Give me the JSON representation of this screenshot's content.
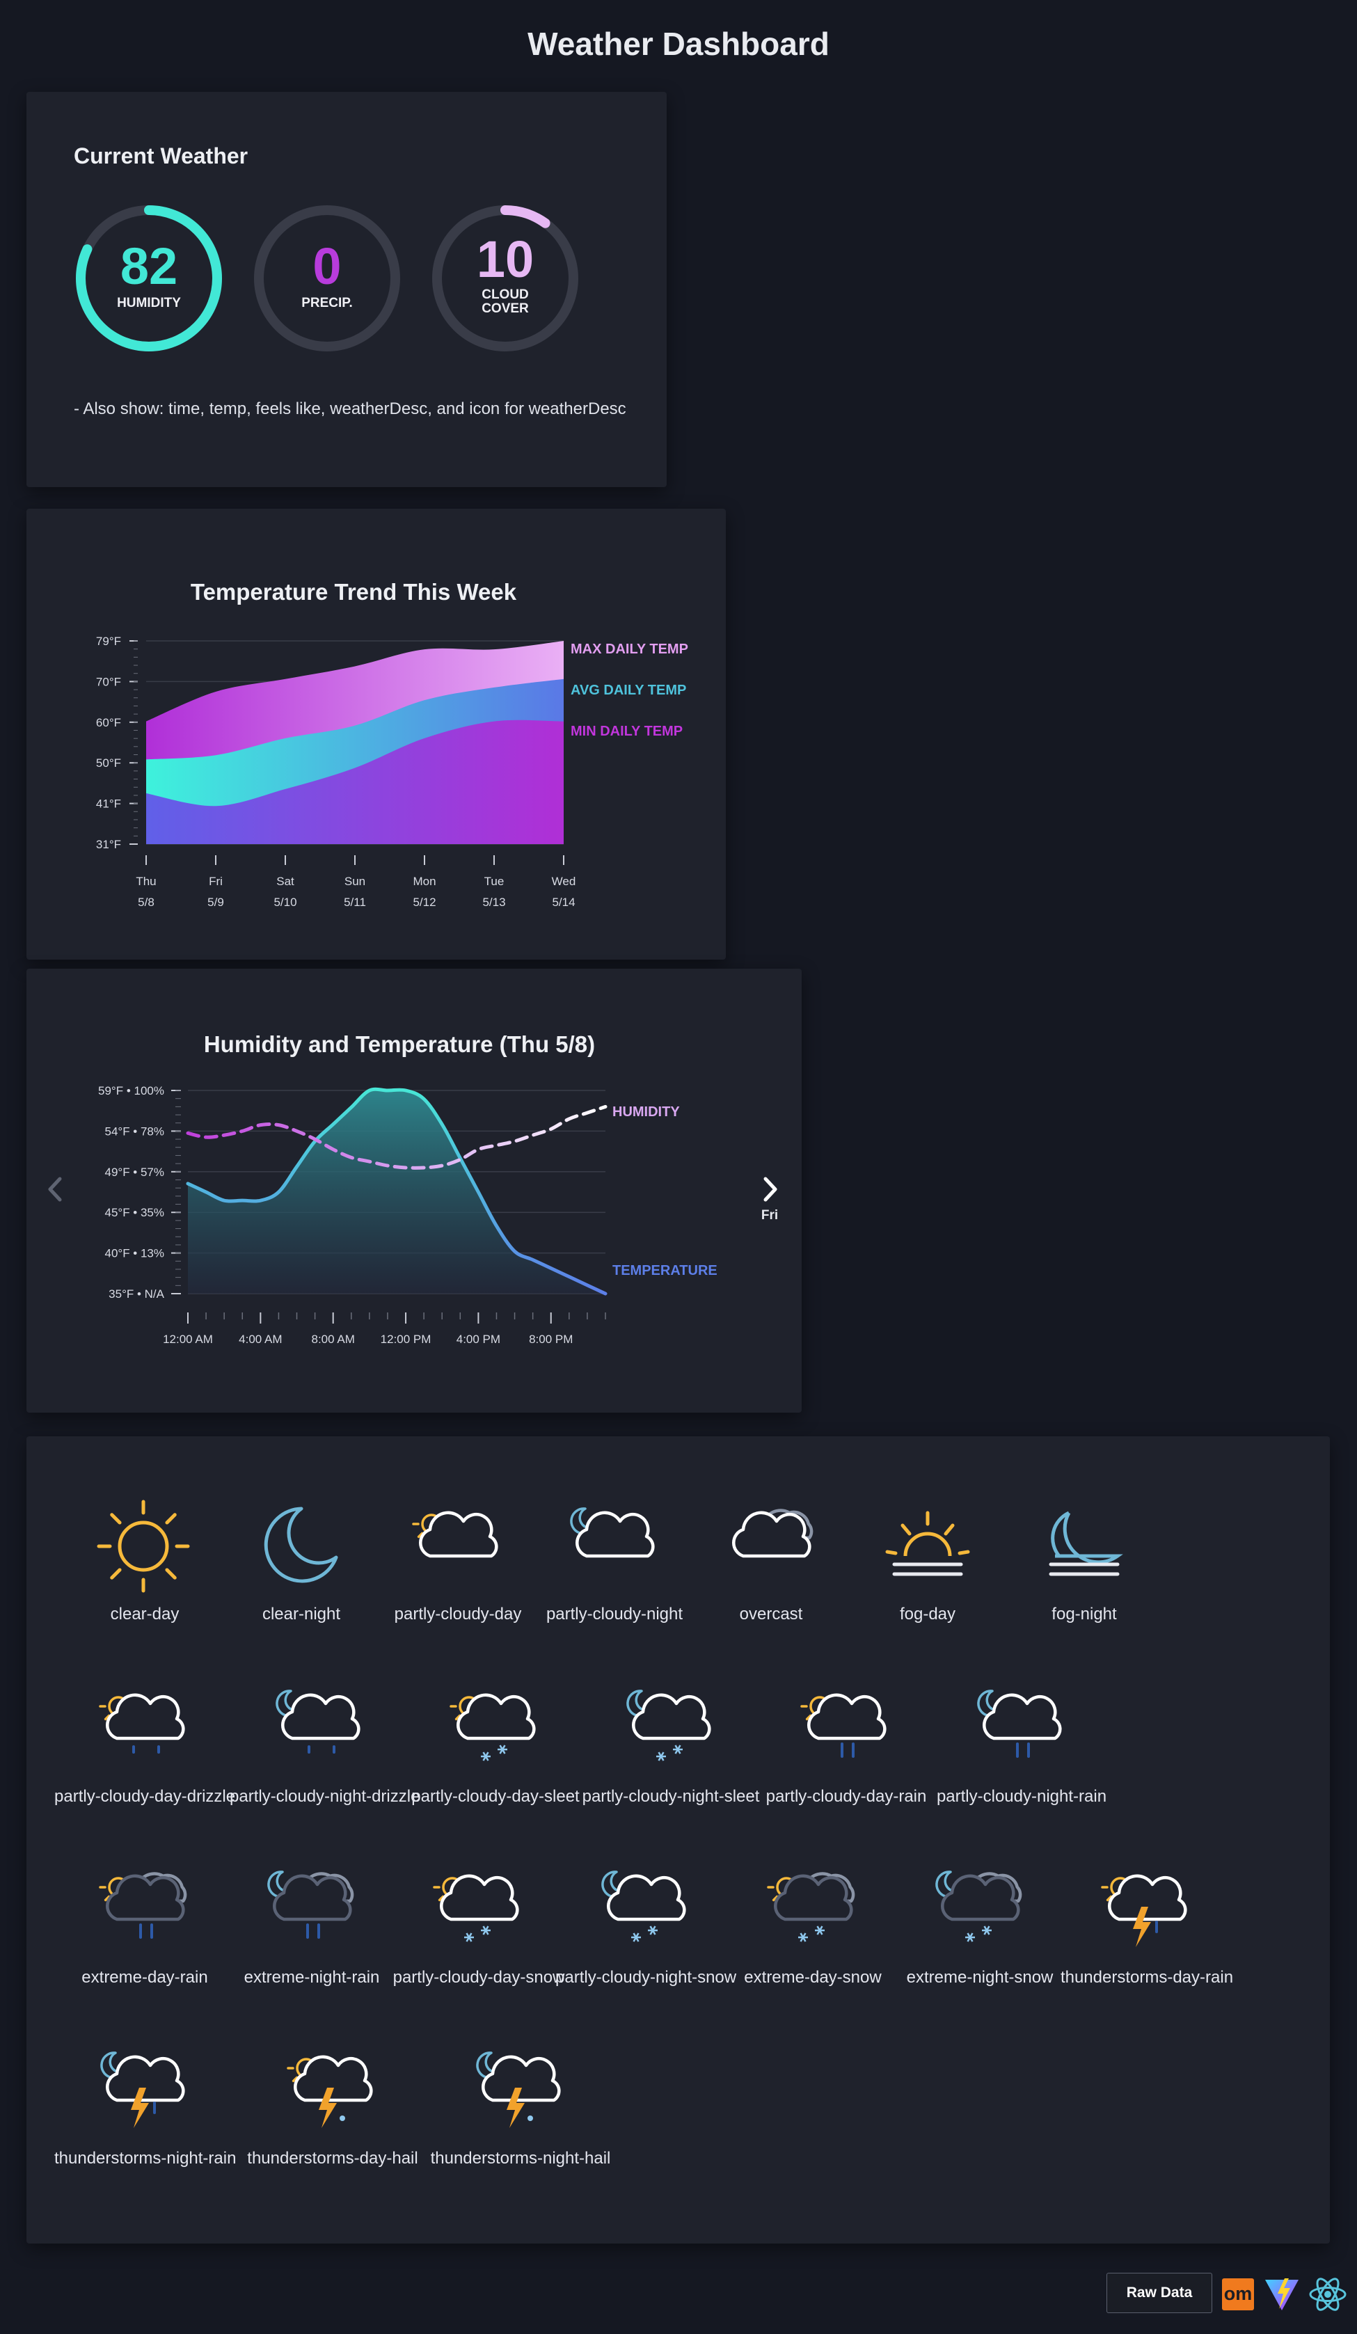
{
  "page": {
    "title": "Weather Dashboard"
  },
  "current": {
    "title": "Current Weather",
    "gauges": [
      {
        "value": "82",
        "label1": "HUMIDITY",
        "label2": "",
        "percent": 82,
        "color": "#42e8d6"
      },
      {
        "value": "0",
        "label1": "PRECIP.",
        "label2": "",
        "percent": 0,
        "color": "#b83cdc"
      },
      {
        "value": "10",
        "label1": "CLOUD",
        "label2": "COVER",
        "percent": 10,
        "color": "#e6b8f3"
      }
    ],
    "note": "- Also show: time, temp, feels like, weatherDesc, and icon for weatherDesc"
  },
  "trend_chart": {
    "chart_data": {
      "type": "area",
      "title": "Temperature Trend This Week",
      "categories": [
        {
          "day": "Thu",
          "date": "5/8"
        },
        {
          "day": "Fri",
          "date": "5/9"
        },
        {
          "day": "Sat",
          "date": "5/10"
        },
        {
          "day": "Sun",
          "date": "5/11"
        },
        {
          "day": "Mon",
          "date": "5/12"
        },
        {
          "day": "Tue",
          "date": "5/13"
        },
        {
          "day": "Wed",
          "date": "5/14"
        }
      ],
      "y_ticks": [
        "31°F",
        "41°F",
        "50°F",
        "60°F",
        "70°F",
        "79°F"
      ],
      "ylim": [
        31,
        79
      ],
      "series": [
        {
          "name": "MAX DAILY TEMP",
          "color": "#e29ef0",
          "values": [
            60,
            67,
            70,
            73,
            77,
            77,
            79
          ]
        },
        {
          "name": "AVG DAILY TEMP",
          "color": "#4fc3dc",
          "values": [
            51,
            52,
            56,
            59,
            65,
            68,
            70
          ]
        },
        {
          "name": "MIN DAILY TEMP",
          "color": "#c136dc",
          "values": [
            43,
            40,
            44,
            49,
            56,
            60,
            60
          ]
        }
      ]
    }
  },
  "humidity_chart": {
    "nav_next_label": "Fri",
    "chart_data": {
      "type": "line",
      "title": "Humidity and Temperature (Thu 5/8)",
      "x_hours": [
        0,
        1,
        2,
        3,
        4,
        5,
        6,
        7,
        8,
        9,
        10,
        11,
        12,
        13,
        14,
        15,
        16,
        17,
        18,
        19,
        20,
        21,
        22,
        23
      ],
      "x_tick_labels": [
        "12:00 AM",
        "4:00 AM",
        "8:00 AM",
        "12:00 PM",
        "4:00 PM",
        "8:00 PM"
      ],
      "y_tick_labels": [
        "35°F • N/A",
        "40°F • 13%",
        "45°F • 35%",
        "49°F • 57%",
        "54°F • 78%",
        "59°F • 100%"
      ],
      "temp_range": [
        35,
        59
      ],
      "humidity_range": [
        0,
        100
      ],
      "series": [
        {
          "name": "TEMPERATURE",
          "color": "#5d7fe8",
          "unit": "°F",
          "values": [
            48,
            47,
            46,
            46,
            46,
            47,
            50,
            53,
            55,
            57,
            59,
            59,
            59,
            58,
            55,
            51,
            47,
            43,
            40,
            39,
            38,
            37,
            36,
            35
          ]
        },
        {
          "name": "HUMIDITY",
          "color": "#d9a8f1",
          "unit": "%",
          "values": [
            79,
            77,
            78,
            80,
            83,
            83,
            80,
            76,
            71,
            67,
            65,
            63,
            62,
            62,
            63,
            66,
            71,
            73,
            75,
            78,
            81,
            86,
            89,
            92
          ]
        }
      ]
    }
  },
  "icons": {
    "rows": [
      [
        {
          "name": "clear-day"
        },
        {
          "name": "clear-night"
        },
        {
          "name": "partly-cloudy-day"
        },
        {
          "name": "partly-cloudy-night"
        },
        {
          "name": "overcast"
        },
        {
          "name": "fog-day"
        },
        {
          "name": "fog-night"
        }
      ],
      [
        {
          "name": "partly-cloudy-day-drizzle"
        },
        {
          "name": "partly-cloudy-night-drizzle"
        },
        {
          "name": "partly-cloudy-day-sleet"
        },
        {
          "name": "partly-cloudy-night-sleet"
        },
        {
          "name": "partly-cloudy-day-rain"
        },
        {
          "name": "partly-cloudy-night-rain"
        }
      ],
      [
        {
          "name": "extreme-day-rain"
        },
        {
          "name": "extreme-night-rain"
        },
        {
          "name": "partly-cloudy-day-snow"
        },
        {
          "name": "partly-cloudy-night-snow"
        },
        {
          "name": "extreme-day-snow"
        },
        {
          "name": "extreme-night-snow"
        },
        {
          "name": "thunderstorms-day-rain"
        }
      ],
      [
        {
          "name": "thunderstorms-night-rain"
        },
        {
          "name": "thunderstorms-day-hail"
        },
        {
          "name": "thunderstorms-night-hail"
        }
      ]
    ]
  },
  "footer": {
    "raw_data_label": "Raw Data",
    "logos": [
      {
        "text": "om",
        "icon": "om-logo-icon"
      },
      {
        "icon": "vite-logo-icon"
      },
      {
        "icon": "react-logo-icon"
      }
    ]
  }
}
